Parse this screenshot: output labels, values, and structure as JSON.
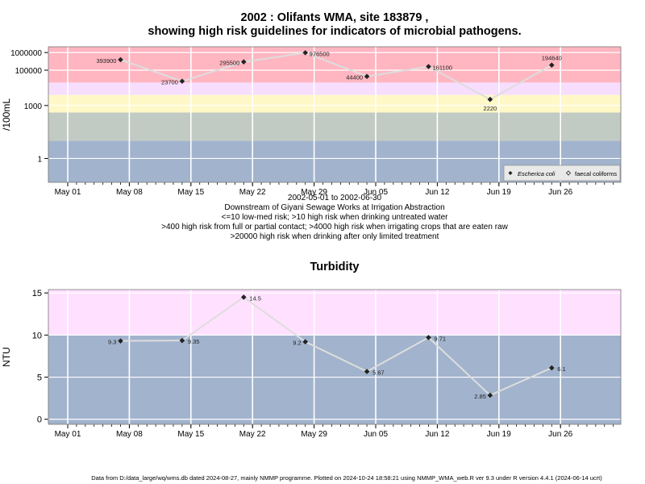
{
  "top": {
    "title_line1": "2002 : Olifants WMA, site 183879 ,",
    "title_line2": "showing high risk guidelines for indicators of microbial pathogens.",
    "notes": [
      "2002-05-01 to 2002-06-30",
      "Downstream of Giyani Sewage Works at Irrigation Abstraction",
      "<=10 low-med risk; >10 high risk when drinking untreated water",
      ">400 high risk from full or partial contact; >4000 high risk when irrigating crops that are eaten raw",
      ">20000 high risk when drinking after only limited treatment"
    ]
  },
  "bottom": {
    "title": "Turbidity"
  },
  "footer": "Data from D:/data_large/wq/wms.db dated 2024-08-27, mainly NMMP programme. Plotted on 2024-10-24 18:58:21 using NMMP_WMA_web.R ver 9.3 under R version 4.4.1 (2024-06-14 ucrt)",
  "colors": {
    "blue_band": "#a2b3cd",
    "green_band": "#c2cbc3",
    "yellow_band": "#fff8c7",
    "lilac_band": "#f7deff",
    "red_band": "#ffb6c1",
    "magenta_band": "#ffe0ff",
    "series_line": "#dddddd",
    "marker": "#222222"
  },
  "chart_data": [
    {
      "type": "line",
      "ylabel": "/100mL",
      "yscale": "log",
      "yticks": [
        "1",
        "1000",
        "100000",
        "1000000"
      ],
      "ytick_values": [
        1,
        1000,
        100000,
        1000000
      ],
      "xticks": [
        "May 01",
        "May 08",
        "May 15",
        "May 22",
        "May 29",
        "Jun 05",
        "Jun 12",
        "Jun 19",
        "Jun 26"
      ],
      "xtick_dates": [
        "2002-05-01",
        "2002-05-08",
        "2002-05-15",
        "2002-05-22",
        "2002-05-29",
        "2002-06-05",
        "2002-06-12",
        "2002-06-19",
        "2002-06-26"
      ],
      "bands": [
        {
          "from": 0,
          "to": 10,
          "color": "blue_band"
        },
        {
          "from": 10,
          "to": 400,
          "color": "green_band"
        },
        {
          "from": 400,
          "to": 4000,
          "color": "yellow_band"
        },
        {
          "from": 4000,
          "to": 20000,
          "color": "lilac_band"
        },
        {
          "from": 20000,
          "to": 10000000,
          "color": "red_band"
        }
      ],
      "legend": {
        "position": "bottom-right",
        "entries": [
          "Escherica coli",
          "faecal coliforms"
        ]
      },
      "series": [
        {
          "name": "Escherica coli",
          "marker": "filled-diamond",
          "points": [
            {
              "x": "2002-05-07",
              "y": 393900,
              "label": "393900"
            },
            {
              "x": "2002-05-14",
              "y": 23700,
              "label": "23700"
            },
            {
              "x": "2002-05-21",
              "y": 295500,
              "label": "295500"
            },
            {
              "x": "2002-05-28",
              "y": 976500,
              "label": "976500"
            },
            {
              "x": "2002-06-04",
              "y": 44400,
              "label": "44400"
            },
            {
              "x": "2002-06-11",
              "y": 161100,
              "label": "161100"
            },
            {
              "x": "2002-06-18",
              "y": 2220,
              "label": "2220"
            },
            {
              "x": "2002-06-25",
              "y": 194640,
              "label": "194640"
            }
          ]
        }
      ]
    },
    {
      "type": "line",
      "title": "Turbidity",
      "ylabel": "NTU",
      "ylim": [
        -0.6,
        15.4
      ],
      "yticks": [
        "0",
        "5",
        "10",
        "15"
      ],
      "ytick_values": [
        0,
        5,
        10,
        15
      ],
      "xticks": [
        "May 01",
        "May 08",
        "May 15",
        "May 22",
        "May 29",
        "Jun 05",
        "Jun 12",
        "Jun 19",
        "Jun 26"
      ],
      "xtick_dates": [
        "2002-05-01",
        "2002-05-08",
        "2002-05-15",
        "2002-05-22",
        "2002-05-29",
        "2002-06-05",
        "2002-06-12",
        "2002-06-19",
        "2002-06-26"
      ],
      "bands": [
        {
          "from": -1,
          "to": 10,
          "color": "blue_band"
        },
        {
          "from": 10,
          "to": 20,
          "color": "magenta_band"
        }
      ],
      "series": [
        {
          "name": "",
          "marker": "filled-diamond",
          "points": [
            {
              "x": "2002-05-07",
              "y": 9.3,
              "label": "9.3"
            },
            {
              "x": "2002-05-14",
              "y": 9.35,
              "label": "9.35"
            },
            {
              "x": "2002-05-21",
              "y": 14.5,
              "label": "14.5"
            },
            {
              "x": "2002-05-28",
              "y": 9.2,
              "label": "9.2"
            },
            {
              "x": "2002-06-04",
              "y": 5.67,
              "label": "5.67"
            },
            {
              "x": "2002-06-11",
              "y": 9.71,
              "label": "9.71"
            },
            {
              "x": "2002-06-18",
              "y": 2.85,
              "label": "2.85"
            },
            {
              "x": "2002-06-25",
              "y": 6.1,
              "label": "6.1"
            }
          ]
        }
      ]
    }
  ]
}
